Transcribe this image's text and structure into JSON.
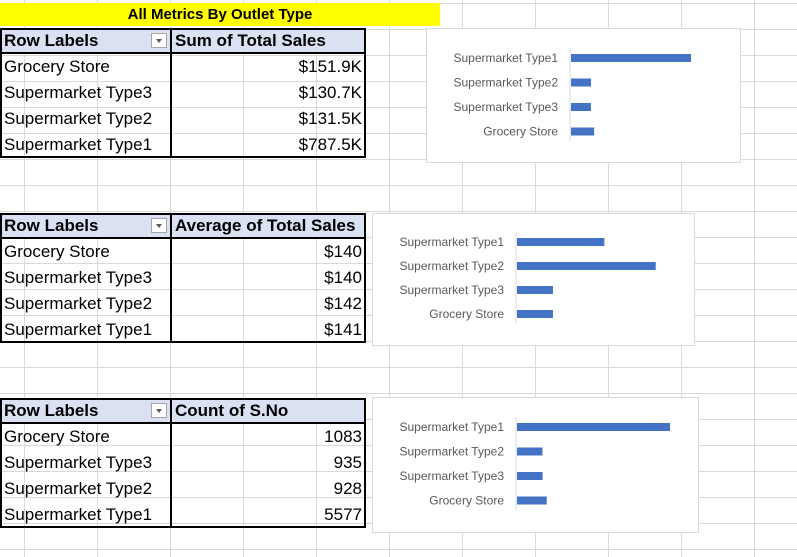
{
  "sheet": {
    "title": "All Metrics By Outlet Type"
  },
  "pivots": [
    {
      "row_header": "Row Labels",
      "value_header": "Sum of Total Sales",
      "rows": [
        {
          "label": "Grocery Store",
          "value": "$151.9K"
        },
        {
          "label": "Supermarket Type3",
          "value": "$130.7K"
        },
        {
          "label": "Supermarket Type2",
          "value": "$131.5K"
        },
        {
          "label": "Supermarket Type1",
          "value": "$787.5K"
        }
      ]
    },
    {
      "row_header": "Row Labels",
      "value_header": "Average of Total Sales",
      "rows": [
        {
          "label": "Grocery Store",
          "value": "$140"
        },
        {
          "label": "Supermarket Type3",
          "value": "$140"
        },
        {
          "label": "Supermarket Type2",
          "value": "$142"
        },
        {
          "label": "Supermarket Type1",
          "value": "$141"
        }
      ]
    },
    {
      "row_header": "Row Labels",
      "value_header": "Count of S.No",
      "rows": [
        {
          "label": "Grocery Store",
          "value": "1083"
        },
        {
          "label": "Supermarket Type3",
          "value": "935"
        },
        {
          "label": "Supermarket Type2",
          "value": "928"
        },
        {
          "label": "Supermarket Type1",
          "value": "5577"
        }
      ]
    }
  ],
  "chart_data": [
    {
      "type": "bar",
      "orientation": "horizontal",
      "categories": [
        "Supermarket Type1",
        "Supermarket Type2",
        "Supermarket Type3",
        "Grocery Store"
      ],
      "values": [
        787.5,
        131.5,
        130.7,
        151.9
      ],
      "xlim": [
        0,
        787.5
      ],
      "bar_color": "#4472c4",
      "grid": false,
      "legend": false
    },
    {
      "type": "bar",
      "orientation": "horizontal",
      "categories": [
        "Supermarket Type1",
        "Supermarket Type2",
        "Supermarket Type3",
        "Grocery Store"
      ],
      "values": [
        141,
        142,
        140,
        140
      ],
      "xlim": [
        139.3,
        142.2
      ],
      "bar_color": "#4472c4",
      "grid": false,
      "legend": false
    },
    {
      "type": "bar",
      "orientation": "horizontal",
      "categories": [
        "Supermarket Type1",
        "Supermarket Type2",
        "Supermarket Type3",
        "Grocery Store"
      ],
      "values": [
        5577,
        928,
        935,
        1083
      ],
      "xlim": [
        0,
        5577
      ],
      "bar_color": "#4472c4",
      "grid": false,
      "legend": false
    }
  ]
}
